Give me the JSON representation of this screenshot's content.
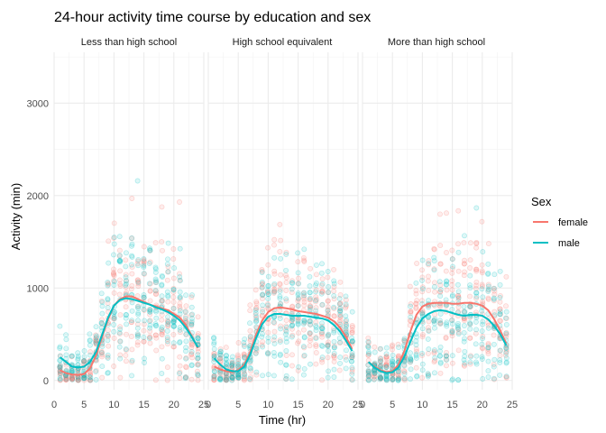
{
  "chart_data": {
    "type": "scatter",
    "title": "24-hour activity time course by education and sex",
    "xlabel": "Time (hr)",
    "ylabel": "Activity (min)",
    "xlim": [
      0,
      25
    ],
    "ylim": [
      -100,
      3550
    ],
    "x_ticks": [
      0,
      5,
      10,
      15,
      20,
      25
    ],
    "y_ticks": [
      0,
      1000,
      2000,
      3000
    ],
    "grid": true,
    "legend": {
      "title": "Sex",
      "position": "right",
      "entries": [
        {
          "name": "female",
          "color": "#F8766D"
        },
        {
          "name": "male",
          "color": "#00BFC4"
        }
      ]
    },
    "panels": [
      {
        "label": "Less than high school",
        "trend": {
          "x": [
            1,
            2,
            3,
            4,
            5,
            6,
            7,
            8,
            9,
            10,
            11,
            12,
            13,
            14,
            15,
            16,
            17,
            18,
            19,
            20,
            21,
            22,
            23,
            24
          ],
          "female": [
            110,
            80,
            65,
            60,
            70,
            130,
            270,
            470,
            660,
            810,
            880,
            910,
            910,
            880,
            850,
            820,
            800,
            780,
            760,
            720,
            680,
            600,
            480,
            350
          ],
          "male": [
            250,
            200,
            150,
            140,
            150,
            200,
            310,
            490,
            680,
            810,
            870,
            890,
            880,
            860,
            840,
            820,
            790,
            770,
            740,
            700,
            650,
            570,
            470,
            360
          ]
        }
      },
      {
        "label": "High school equivalent",
        "trend": {
          "x": [
            1,
            2,
            3,
            4,
            5,
            6,
            7,
            8,
            9,
            10,
            11,
            12,
            13,
            14,
            15,
            16,
            17,
            18,
            19,
            20,
            21,
            22,
            23,
            24
          ],
          "female": [
            150,
            120,
            100,
            90,
            110,
            170,
            310,
            500,
            650,
            740,
            780,
            790,
            780,
            770,
            750,
            740,
            730,
            720,
            700,
            680,
            640,
            570,
            470,
            340
          ],
          "male": [
            240,
            170,
            120,
            100,
            100,
            150,
            280,
            460,
            610,
            690,
            720,
            720,
            710,
            700,
            700,
            700,
            690,
            680,
            670,
            650,
            600,
            530,
            430,
            320
          ]
        }
      },
      {
        "label": "More than high school",
        "trend": {
          "x": [
            1,
            2,
            3,
            4,
            5,
            6,
            7,
            8,
            9,
            10,
            11,
            12,
            13,
            14,
            15,
            16,
            17,
            18,
            19,
            20,
            21,
            22,
            23,
            24
          ],
          "female": [
            200,
            150,
            110,
            90,
            100,
            170,
            320,
            530,
            710,
            800,
            830,
            840,
            840,
            840,
            830,
            830,
            840,
            840,
            830,
            810,
            760,
            660,
            540,
            400
          ],
          "male": [
            200,
            140,
            100,
            80,
            90,
            140,
            260,
            420,
            570,
            670,
            720,
            750,
            760,
            750,
            730,
            710,
            700,
            710,
            710,
            700,
            660,
            590,
            500,
            380
          ]
        }
      }
    ]
  }
}
